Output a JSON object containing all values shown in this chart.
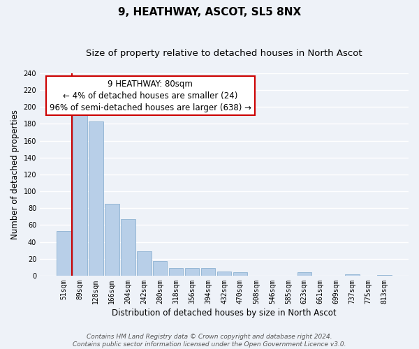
{
  "title": "9, HEATHWAY, ASCOT, SL5 8NX",
  "subtitle": "Size of property relative to detached houses in North Ascot",
  "xlabel": "Distribution of detached houses by size in North Ascot",
  "ylabel": "Number of detached properties",
  "bar_labels": [
    "51sqm",
    "89sqm",
    "128sqm",
    "166sqm",
    "204sqm",
    "242sqm",
    "280sqm",
    "318sqm",
    "356sqm",
    "394sqm",
    "432sqm",
    "470sqm",
    "508sqm",
    "546sqm",
    "585sqm",
    "623sqm",
    "661sqm",
    "699sqm",
    "737sqm",
    "775sqm",
    "813sqm"
  ],
  "bar_values": [
    53,
    190,
    183,
    85,
    67,
    29,
    17,
    9,
    9,
    9,
    5,
    4,
    0,
    0,
    0,
    4,
    0,
    0,
    2,
    0,
    1
  ],
  "bar_color": "#b8cfe8",
  "bar_edge_color": "#7fa8cc",
  "annotation_line1": "9 HEATHWAY: 80sqm",
  "annotation_line2": "← 4% of detached houses are smaller (24)",
  "annotation_line3": "96% of semi-detached houses are larger (638) →",
  "annotation_box_color": "#ffffff",
  "annotation_box_edge_color": "#cc0000",
  "red_line_color": "#cc0000",
  "ylim": [
    0,
    240
  ],
  "yticks": [
    0,
    20,
    40,
    60,
    80,
    100,
    120,
    140,
    160,
    180,
    200,
    220,
    240
  ],
  "footer_line1": "Contains HM Land Registry data © Crown copyright and database right 2024.",
  "footer_line2": "Contains public sector information licensed under the Open Government Licence v3.0.",
  "bg_color": "#eef2f8",
  "plot_bg_color": "#eef2f8",
  "grid_color": "#ffffff",
  "title_fontsize": 11,
  "subtitle_fontsize": 9.5,
  "axis_label_fontsize": 8.5,
  "tick_fontsize": 7,
  "annotation_fontsize": 8.5,
  "footer_fontsize": 6.5
}
